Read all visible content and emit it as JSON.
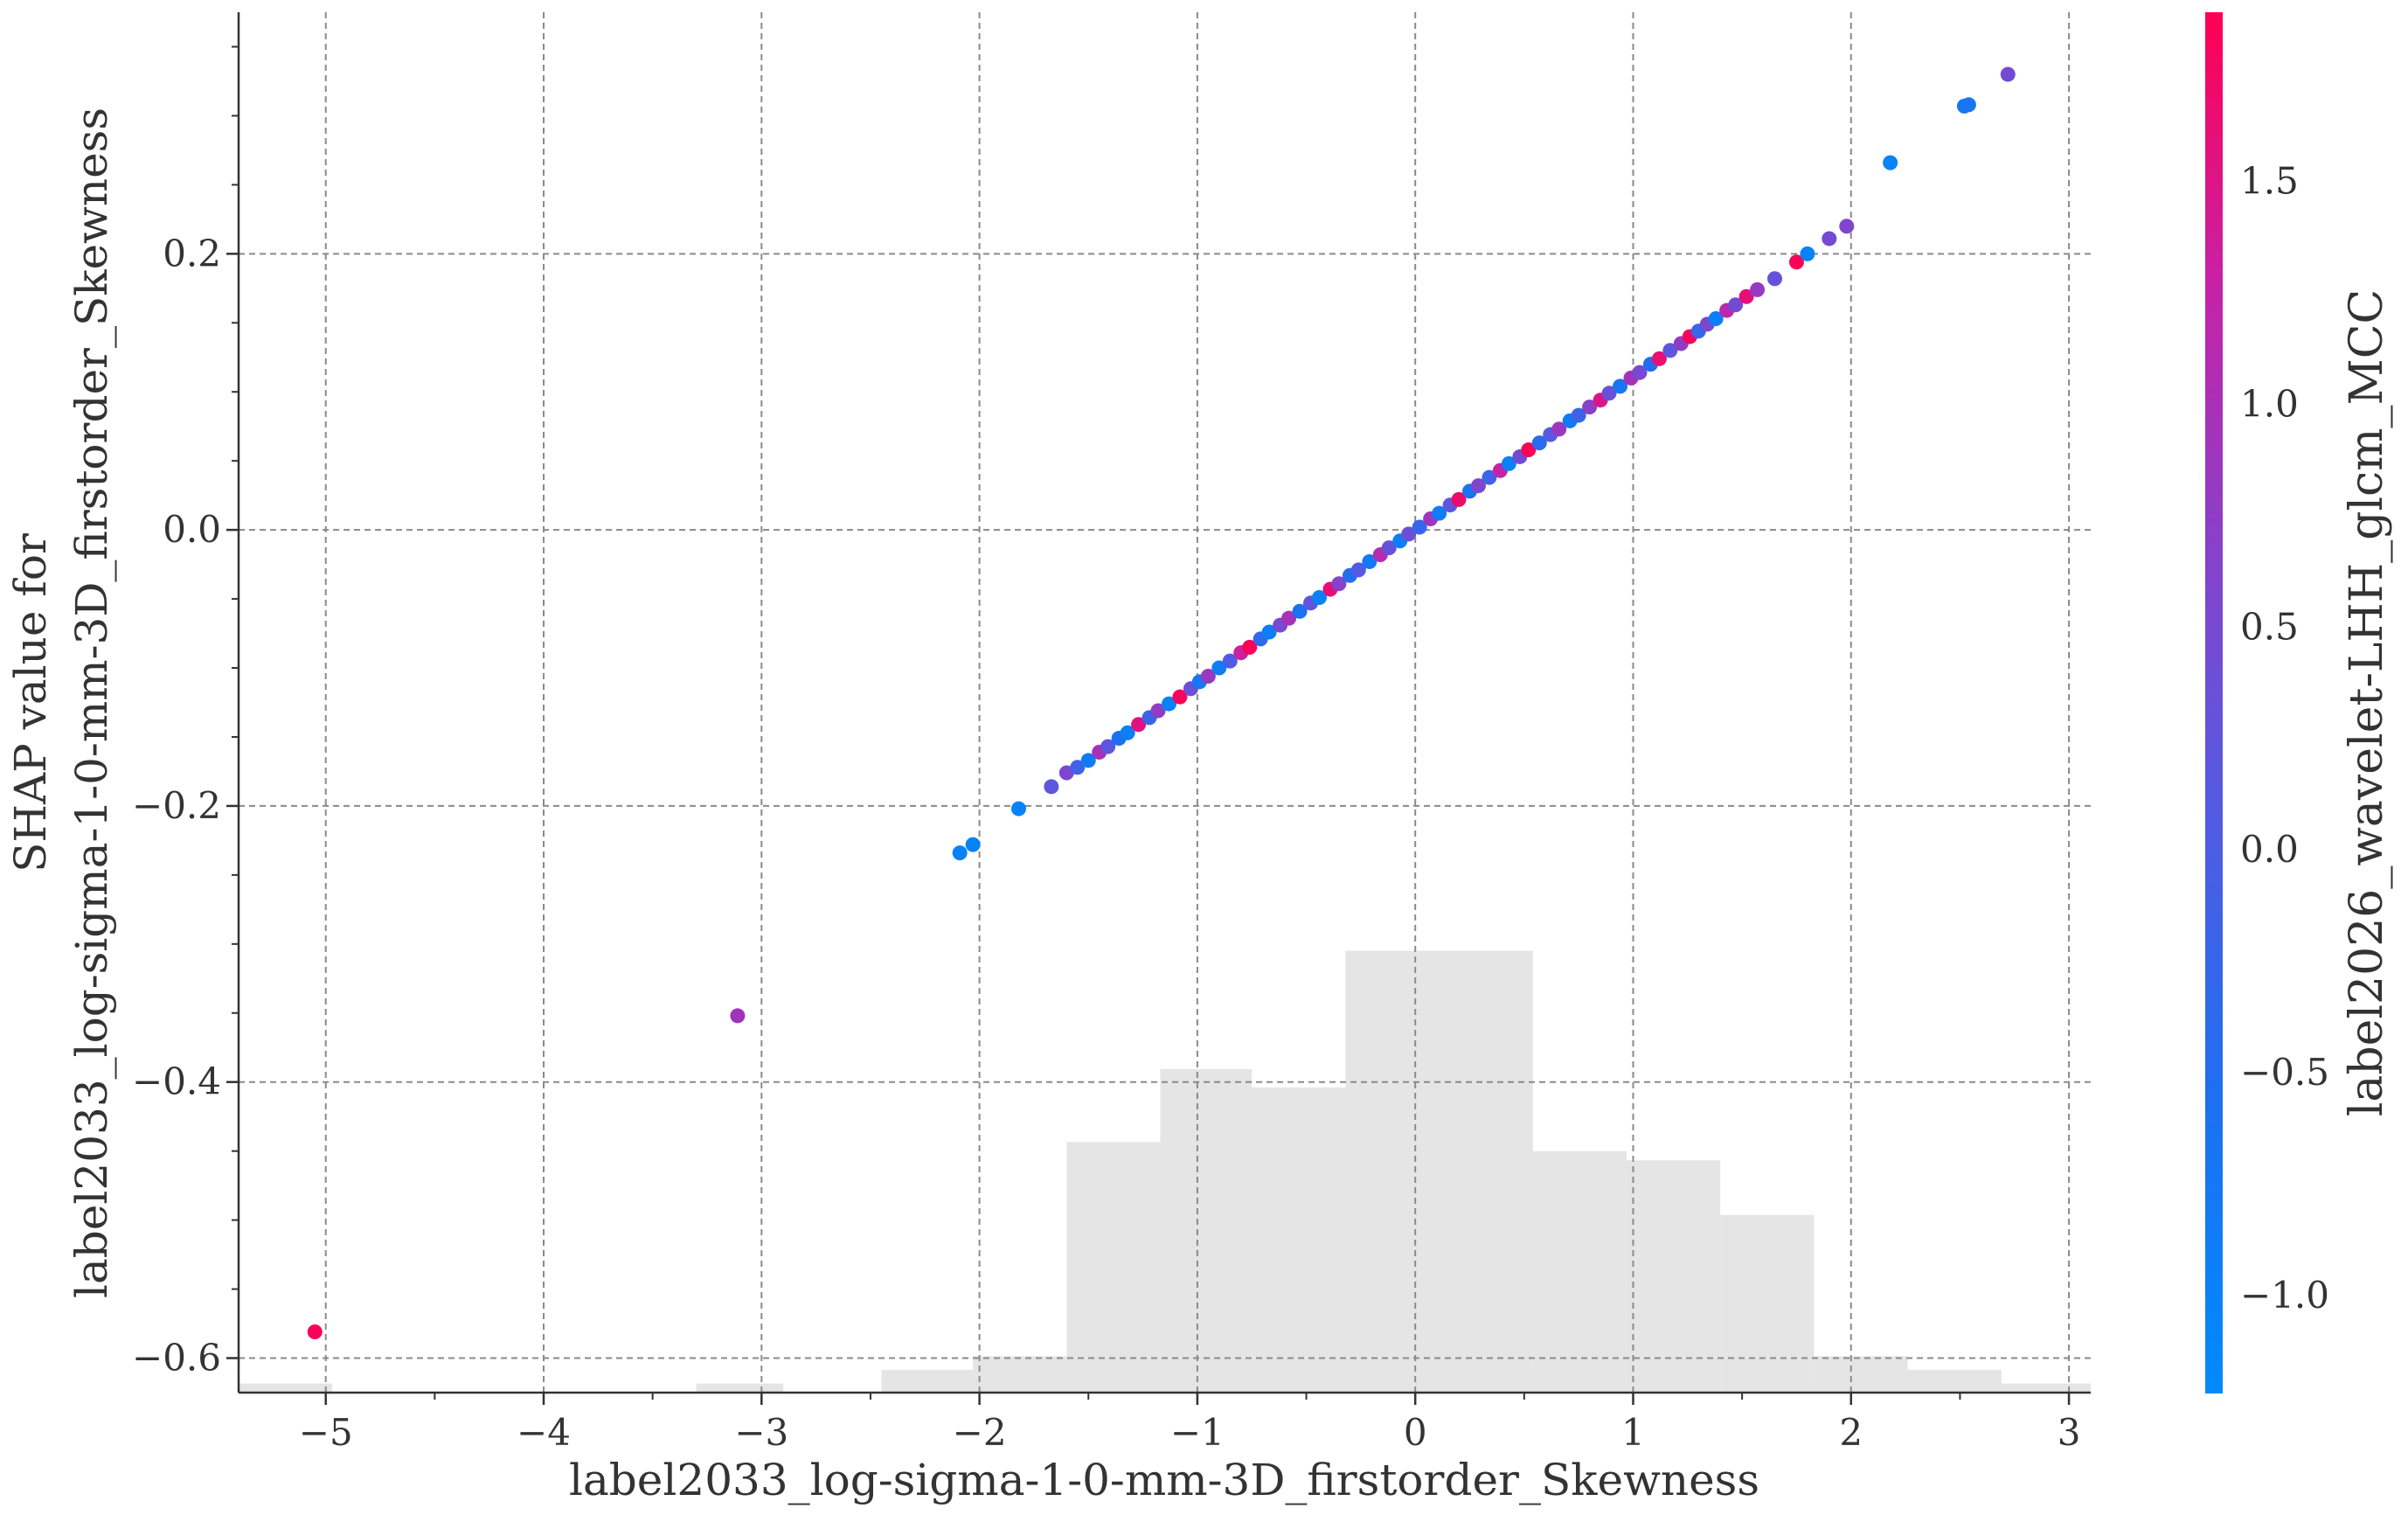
{
  "colors": {
    "low": "#008afb",
    "mid": "#7b4fd6",
    "high": "#ff0052",
    "histogram": "#e5e5e5",
    "axis": "#333333",
    "grid": "#8a8a8a"
  },
  "chart_data": {
    "type": "scatter",
    "title": "",
    "xlabel": "label2033_log-sigma-1-0-mm-3D_firstorder_Skewness",
    "ylabel_lines": [
      "SHAP value for",
      "label2033_log-sigma-1-0-mm-3D_firstorder_Skewness"
    ],
    "xlim": [
      -5.4,
      3.1
    ],
    "ylim": [
      -0.625,
      0.375
    ],
    "xticks": [
      -5,
      -4,
      -3,
      -2,
      -1,
      0,
      1,
      2,
      3
    ],
    "xtick_labels": [
      "−5",
      "−4",
      "−3",
      "−2",
      "−1",
      "0",
      "1",
      "2",
      "3"
    ],
    "yticks": [
      -0.6,
      -0.4,
      -0.2,
      0.0,
      0.2
    ],
    "ytick_labels": [
      "−0.6",
      "−0.4",
      "−0.2",
      "0.0",
      "0.2"
    ],
    "grid": true,
    "colorbar": {
      "label": "label2026_wavelet-LHH_glcm_MCC",
      "range": [
        -1.22,
        1.88
      ],
      "ticks": [
        -1.0,
        -0.5,
        0.0,
        0.5,
        1.0,
        1.5
      ],
      "tick_labels": [
        "−1.0",
        "−0.5",
        "0.0",
        "0.5",
        "1.0",
        "1.5"
      ]
    },
    "histogram": {
      "bin_edges": [
        -5.4,
        -4.97,
        -3.3,
        -2.9,
        -2.45,
        -2.03,
        -1.6,
        -1.17,
        -0.75,
        -0.32,
        0.54,
        0.97,
        1.4,
        1.83,
        2.26,
        2.69,
        3.1
      ],
      "heights": [
        0.02,
        0.0,
        0.02,
        0.0,
        0.05,
        0.08,
        0.55,
        0.71,
        0.67,
        0.97,
        0.53,
        0.51,
        0.39,
        0.08,
        0.05,
        0.02
      ],
      "max_height_frac": 0.33
    },
    "points": [
      {
        "x": -5.05,
        "y": -0.581,
        "c": 1.82
      },
      {
        "x": -3.11,
        "y": -0.352,
        "c": 0.92
      },
      {
        "x": -2.09,
        "y": -0.234,
        "c": -1.02
      },
      {
        "x": -2.03,
        "y": -0.228,
        "c": -1.02
      },
      {
        "x": -1.82,
        "y": -0.202,
        "c": -1.05
      },
      {
        "x": -1.67,
        "y": -0.186,
        "c": 0.21
      },
      {
        "x": -1.6,
        "y": -0.176,
        "c": 0.55
      },
      {
        "x": -1.55,
        "y": -0.172,
        "c": -0.15
      },
      {
        "x": -1.5,
        "y": -0.167,
        "c": -0.85
      },
      {
        "x": -1.45,
        "y": -0.161,
        "c": 0.95
      },
      {
        "x": -1.41,
        "y": -0.157,
        "c": 0.2
      },
      {
        "x": -1.36,
        "y": -0.151,
        "c": -0.55
      },
      {
        "x": -1.32,
        "y": -0.147,
        "c": -0.95
      },
      {
        "x": -1.27,
        "y": -0.141,
        "c": 1.55
      },
      {
        "x": -1.22,
        "y": -0.136,
        "c": -0.2
      },
      {
        "x": -1.18,
        "y": -0.131,
        "c": 0.75
      },
      {
        "x": -1.13,
        "y": -0.126,
        "c": -1.0
      },
      {
        "x": -1.08,
        "y": -0.121,
        "c": 1.8
      },
      {
        "x": -1.03,
        "y": -0.115,
        "c": 0.35
      },
      {
        "x": -0.99,
        "y": -0.11,
        "c": -0.7
      },
      {
        "x": -0.95,
        "y": -0.106,
        "c": 0.85
      },
      {
        "x": -0.9,
        "y": -0.1,
        "c": -0.9
      },
      {
        "x": -0.85,
        "y": -0.095,
        "c": 0.05
      },
      {
        "x": -0.8,
        "y": -0.089,
        "c": 1.3
      },
      {
        "x": -0.76,
        "y": -0.085,
        "c": 1.85
      },
      {
        "x": -0.71,
        "y": -0.079,
        "c": -0.35
      },
      {
        "x": -0.67,
        "y": -0.074,
        "c": -0.95
      },
      {
        "x": -0.62,
        "y": -0.069,
        "c": 0.5
      },
      {
        "x": -0.58,
        "y": -0.064,
        "c": 0.95
      },
      {
        "x": -0.53,
        "y": -0.059,
        "c": -0.6
      },
      {
        "x": -0.48,
        "y": -0.053,
        "c": 0.25
      },
      {
        "x": -0.44,
        "y": -0.049,
        "c": -1.0
      },
      {
        "x": -0.39,
        "y": -0.043,
        "c": 1.6
      },
      {
        "x": -0.35,
        "y": -0.039,
        "c": 0.65
      },
      {
        "x": -0.3,
        "y": -0.033,
        "c": -0.45
      },
      {
        "x": -0.26,
        "y": -0.029,
        "c": 0.1
      },
      {
        "x": -0.21,
        "y": -0.023,
        "c": -0.8
      },
      {
        "x": -0.16,
        "y": -0.018,
        "c": 1.1
      },
      {
        "x": -0.12,
        "y": -0.013,
        "c": 0.3
      },
      {
        "x": -0.07,
        "y": -0.008,
        "c": -0.95
      },
      {
        "x": -0.03,
        "y": -0.003,
        "c": 0.4
      },
      {
        "x": 0.02,
        "y": 0.002,
        "c": -0.25
      },
      {
        "x": 0.07,
        "y": 0.008,
        "c": 0.9
      },
      {
        "x": 0.11,
        "y": 0.012,
        "c": -0.9
      },
      {
        "x": 0.16,
        "y": 0.018,
        "c": 0.2
      },
      {
        "x": 0.2,
        "y": 0.022,
        "c": 1.7
      },
      {
        "x": 0.25,
        "y": 0.028,
        "c": -0.6
      },
      {
        "x": 0.29,
        "y": 0.032,
        "c": 0.6
      },
      {
        "x": 0.34,
        "y": 0.038,
        "c": -0.15
      },
      {
        "x": 0.39,
        "y": 0.043,
        "c": 1.25
      },
      {
        "x": 0.43,
        "y": 0.048,
        "c": -1.0
      },
      {
        "x": 0.48,
        "y": 0.053,
        "c": 0.45
      },
      {
        "x": 0.52,
        "y": 0.058,
        "c": 1.85
      },
      {
        "x": 0.57,
        "y": 0.063,
        "c": -0.4
      },
      {
        "x": 0.62,
        "y": 0.069,
        "c": 0.15
      },
      {
        "x": 0.66,
        "y": 0.073,
        "c": 0.85
      },
      {
        "x": 0.71,
        "y": 0.079,
        "c": -0.85
      },
      {
        "x": 0.75,
        "y": 0.083,
        "c": -0.2
      },
      {
        "x": 0.8,
        "y": 0.089,
        "c": 0.7
      },
      {
        "x": 0.85,
        "y": 0.094,
        "c": 1.5
      },
      {
        "x": 0.89,
        "y": 0.099,
        "c": 0.35
      },
      {
        "x": 0.94,
        "y": 0.104,
        "c": -0.7
      },
      {
        "x": 0.99,
        "y": 0.11,
        "c": 0.95
      },
      {
        "x": 1.03,
        "y": 0.114,
        "c": 0.5
      },
      {
        "x": 1.08,
        "y": 0.12,
        "c": -0.5
      },
      {
        "x": 1.12,
        "y": 0.124,
        "c": 1.65
      },
      {
        "x": 1.17,
        "y": 0.13,
        "c": 0.2
      },
      {
        "x": 1.22,
        "y": 0.135,
        "c": 0.75
      },
      {
        "x": 1.26,
        "y": 0.14,
        "c": 1.8
      },
      {
        "x": 1.3,
        "y": 0.144,
        "c": -0.25
      },
      {
        "x": 1.34,
        "y": 0.149,
        "c": 0.55
      },
      {
        "x": 1.38,
        "y": 0.153,
        "c": -0.95
      },
      {
        "x": 1.43,
        "y": 0.159,
        "c": 1.15
      },
      {
        "x": 1.47,
        "y": 0.163,
        "c": 0.45
      },
      {
        "x": 1.52,
        "y": 0.169,
        "c": 1.6
      },
      {
        "x": 1.57,
        "y": 0.174,
        "c": 0.8
      },
      {
        "x": 1.65,
        "y": 0.182,
        "c": 0.3
      },
      {
        "x": 1.75,
        "y": 0.194,
        "c": 1.85
      },
      {
        "x": 1.8,
        "y": 0.2,
        "c": -1.05
      },
      {
        "x": 1.9,
        "y": 0.211,
        "c": 0.45
      },
      {
        "x": 1.98,
        "y": 0.22,
        "c": 0.6
      },
      {
        "x": 2.18,
        "y": 0.266,
        "c": -1.05
      },
      {
        "x": 2.52,
        "y": 0.307,
        "c": -0.7
      },
      {
        "x": 2.54,
        "y": 0.308,
        "c": -0.7
      },
      {
        "x": 2.72,
        "y": 0.33,
        "c": 0.45
      }
    ]
  }
}
